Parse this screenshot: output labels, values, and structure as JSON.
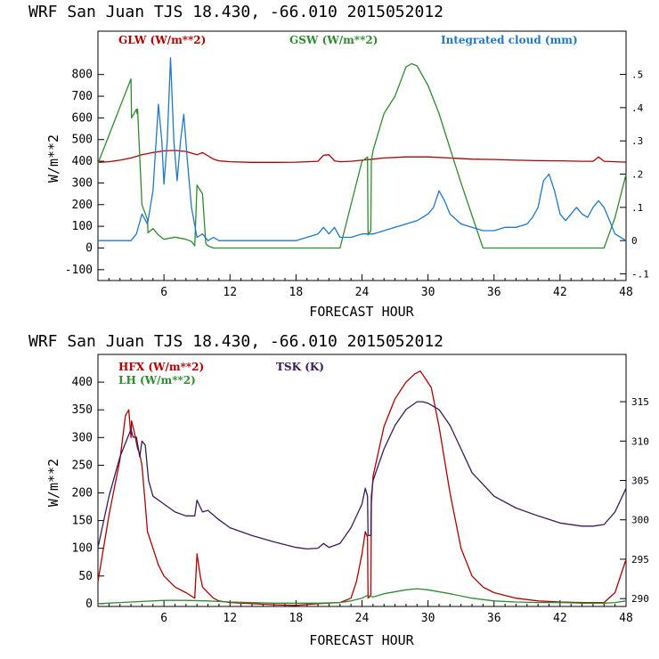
{
  "chart_data": [
    {
      "type": "line",
      "title": "WRF  San Juan TJS  18.430, -66.010  2015052012",
      "xlabel": "FORECAST HOUR",
      "ylabel": "W/m**2",
      "xlim": [
        0,
        48
      ],
      "ylim": [
        -150,
        1000
      ],
      "y2lim": [
        -0.12,
        0.63
      ],
      "xticks": [
        6,
        12,
        18,
        24,
        30,
        36,
        42,
        48
      ],
      "yticks": [
        -100,
        0,
        100,
        200,
        300,
        400,
        500,
        600,
        700,
        800
      ],
      "y2ticks": [
        -0.1,
        0,
        0.1,
        0.2,
        0.3,
        0.4,
        0.5
      ],
      "ytick_labels": [
        "-100",
        "0",
        "100",
        "200",
        "300",
        "400",
        "500",
        "600",
        "700",
        "800"
      ],
      "y2tick_labels": [
        "-.1",
        "0",
        ".1",
        ".2",
        ".3",
        ".4",
        ".5"
      ],
      "legend_placement": "top",
      "series": [
        {
          "name": "GLW (W/m**2)",
          "color": "#b00000",
          "axis": "left",
          "x": [
            0,
            1,
            2,
            3,
            4,
            5,
            6,
            7,
            8,
            9,
            9.5,
            10,
            10.5,
            11,
            12,
            14,
            16,
            18,
            19,
            20,
            20.5,
            21,
            21.5,
            22,
            23,
            24,
            25,
            26,
            28,
            30,
            32,
            34,
            36,
            38,
            40,
            42,
            44,
            45,
            45.5,
            46,
            47,
            48
          ],
          "y": [
            395,
            398,
            405,
            415,
            430,
            440,
            448,
            450,
            445,
            430,
            440,
            425,
            410,
            402,
            398,
            395,
            395,
            396,
            398,
            400,
            428,
            430,
            402,
            398,
            400,
            405,
            410,
            415,
            420,
            420,
            415,
            410,
            408,
            405,
            403,
            402,
            400,
            400,
            420,
            400,
            398,
            396
          ]
        },
        {
          "name": "GSW (W/m**2)",
          "color": "#2e8b2e",
          "axis": "left",
          "x": [
            0,
            1,
            2,
            3,
            3.05,
            3.5,
            3.55,
            3.6,
            4,
            4.5,
            4.55,
            5,
            5.5,
            6,
            7,
            8,
            8.5,
            8.8,
            9,
            9.5,
            9.8,
            10,
            10.5,
            12,
            18,
            22,
            24,
            24.5,
            24.55,
            24.8,
            24.85,
            25,
            26,
            27,
            28,
            28.5,
            29,
            30,
            31,
            32,
            33,
            34,
            35,
            36,
            40,
            44,
            46,
            47,
            48
          ],
          "y": [
            390,
            520,
            650,
            780,
            600,
            640,
            620,
            640,
            200,
            130,
            70,
            90,
            60,
            40,
            50,
            40,
            30,
            10,
            290,
            250,
            20,
            10,
            0,
            0,
            0,
            0,
            400,
            420,
            60,
            80,
            400,
            450,
            620,
            700,
            835,
            850,
            840,
            750,
            620,
            460,
            300,
            150,
            0,
            0,
            0,
            0,
            0,
            140,
            340
          ]
        },
        {
          "name": "Integrated cloud (mm)",
          "color": "#1f78c8",
          "axis": "right",
          "x": [
            0,
            2,
            3,
            3.5,
            4,
            4.5,
            5,
            5.5,
            5.8,
            6,
            6.3,
            6.6,
            6.9,
            7.2,
            7.5,
            7.8,
            8.1,
            8.5,
            9,
            9.5,
            10,
            10.5,
            11,
            12,
            14,
            16,
            18,
            19,
            20,
            20.5,
            21,
            21.5,
            22,
            23,
            24,
            25,
            26,
            27,
            28,
            29,
            30,
            30.5,
            31,
            31.5,
            32,
            33,
            34,
            35,
            36,
            37,
            38,
            39,
            39.5,
            40,
            40.5,
            41,
            41.5,
            42,
            42.5,
            43,
            43.5,
            44,
            44.5,
            45,
            45.5,
            46,
            46.5,
            47,
            48
          ],
          "y": [
            0,
            0,
            0,
            0.02,
            0.08,
            0.05,
            0.15,
            0.41,
            0.3,
            0.17,
            0.3,
            0.55,
            0.3,
            0.18,
            0.3,
            0.38,
            0.25,
            0.1,
            0.01,
            0.02,
            0.0,
            0.01,
            0.0,
            0,
            0,
            0,
            0,
            0.01,
            0.02,
            0.04,
            0.02,
            0.04,
            0.01,
            0.01,
            0.02,
            0.02,
            0.03,
            0.04,
            0.05,
            0.06,
            0.08,
            0.1,
            0.15,
            0.12,
            0.08,
            0.05,
            0.04,
            0.03,
            0.03,
            0.04,
            0.04,
            0.05,
            0.07,
            0.1,
            0.18,
            0.2,
            0.15,
            0.08,
            0.06,
            0.08,
            0.1,
            0.08,
            0.07,
            0.1,
            0.12,
            0.1,
            0.06,
            0.02,
            0.0
          ]
        }
      ]
    },
    {
      "type": "line",
      "title": "WRF  San Juan TJS  18.430, -66.010  2015052012",
      "xlabel": "FORECAST HOUR",
      "ylabel": "W/m**2",
      "xlim": [
        0,
        48
      ],
      "ylim": [
        -5,
        450
      ],
      "y2lim": [
        289,
        321
      ],
      "xticks": [
        6,
        12,
        18,
        24,
        30,
        36,
        42,
        48
      ],
      "yticks": [
        0,
        50,
        100,
        150,
        200,
        250,
        300,
        350,
        400
      ],
      "y2ticks": [
        290,
        295,
        300,
        305,
        310,
        315
      ],
      "ytick_labels": [
        "0",
        "50",
        "100",
        "150",
        "200",
        "250",
        "300",
        "350",
        "400"
      ],
      "y2tick_labels": [
        "290",
        "295",
        "300",
        "305",
        "310",
        "315"
      ],
      "legend_placement": "top-left",
      "series": [
        {
          "name": "HFX (W/m**2)",
          "color": "#b00000",
          "axis": "left",
          "x": [
            0,
            1,
            2,
            2.5,
            2.8,
            3,
            3.05,
            3.3,
            3.6,
            3.8,
            4,
            4.3,
            4.5,
            5,
            5.5,
            6,
            7,
            8,
            8.8,
            9,
            9.3,
            9.5,
            10,
            10.5,
            11,
            12,
            14,
            16,
            18,
            20,
            22,
            23,
            23.5,
            24,
            24.3,
            24.5,
            24.55,
            24.8,
            24.85,
            25,
            26,
            27,
            28,
            28.8,
            29.3,
            29.8,
            30.3,
            31,
            32,
            33,
            34,
            35,
            36,
            38,
            40,
            42,
            44,
            46,
            47,
            48
          ],
          "y": [
            40,
            160,
            260,
            340,
            350,
            300,
            330,
            310,
            280,
            270,
            250,
            180,
            130,
            100,
            70,
            50,
            30,
            20,
            10,
            90,
            50,
            30,
            20,
            10,
            5,
            2,
            0,
            -2,
            -3,
            0,
            2,
            10,
            40,
            90,
            130,
            120,
            10,
            15,
            180,
            230,
            320,
            370,
            400,
            415,
            420,
            405,
            390,
            320,
            200,
            100,
            50,
            30,
            20,
            10,
            5,
            3,
            2,
            2,
            20,
            80
          ]
        },
        {
          "name": "LH (W/m**2)",
          "color": "#2e8b2e",
          "axis": "left",
          "x": [
            0,
            2,
            4,
            6,
            8,
            10,
            12,
            14,
            16,
            18,
            20,
            22,
            23,
            24,
            24.5,
            25,
            26,
            28,
            29,
            30,
            32,
            34,
            36,
            38,
            40,
            42,
            44,
            46,
            47,
            48
          ],
          "y": [
            0,
            2,
            4,
            6,
            6,
            5,
            3,
            2,
            1,
            1,
            1,
            2,
            5,
            10,
            15,
            12,
            18,
            25,
            27,
            25,
            18,
            10,
            5,
            3,
            2,
            2,
            1,
            1,
            2,
            5
          ]
        },
        {
          "name": "TSK (K)",
          "color": "#3b1a5a",
          "axis": "right",
          "x": [
            0,
            1,
            2,
            3,
            3.2,
            3.5,
            3.8,
            4,
            4.3,
            4.6,
            5,
            6,
            7,
            8,
            8.8,
            9,
            9.5,
            10,
            11,
            12,
            14,
            16,
            18,
            19,
            20,
            20.5,
            21,
            22,
            23,
            24,
            24.3,
            24.5,
            24.55,
            24.8,
            24.85,
            25,
            26,
            27,
            28,
            29,
            29.5,
            30,
            31,
            32,
            33,
            34,
            36,
            38,
            40,
            42,
            44,
            45,
            46,
            47,
            48
          ],
          "y": [
            296.5,
            303,
            308,
            311.5,
            310.5,
            310.5,
            308,
            310,
            309.5,
            305,
            303,
            302,
            301,
            300.5,
            300.5,
            302.5,
            301,
            301.2,
            300,
            299,
            298,
            297.2,
            296.5,
            296.3,
            296.4,
            297,
            296.5,
            297,
            299,
            302,
            304,
            303,
            298,
            298,
            303,
            305,
            309,
            312,
            314,
            315,
            315,
            314.8,
            314,
            312,
            309,
            306,
            303,
            301.5,
            300.5,
            299.6,
            299.2,
            299.2,
            299.4,
            301,
            304
          ]
        }
      ]
    }
  ]
}
